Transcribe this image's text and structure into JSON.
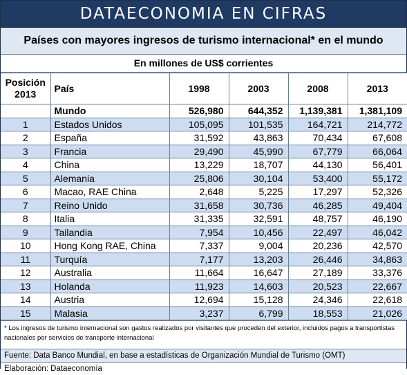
{
  "banner": {
    "title": "DATAECONOMIA EN CIFRAS"
  },
  "subtitle": "Países con mayores ingresos de turismo internacional* en el mundo",
  "unit": "En millones de US$ corrientes",
  "table": {
    "headers": {
      "position": "Posición 2013",
      "position_line1": "Posición",
      "position_line2": "2013",
      "country": "País",
      "years": [
        "1998",
        "2003",
        "2008",
        "2013"
      ]
    },
    "world": {
      "country": "Mundo",
      "values": [
        "526,980",
        "644,352",
        "1,139,381",
        "1,381,109"
      ]
    },
    "rows": [
      {
        "pos": "1",
        "country": "Estados Unidos",
        "values": [
          "105,095",
          "101,535",
          "164,721",
          "214,772"
        ]
      },
      {
        "pos": "2",
        "country": "España",
        "values": [
          "31,592",
          "43,863",
          "70,434",
          "67,608"
        ]
      },
      {
        "pos": "3",
        "country": "Francia",
        "values": [
          "29,490",
          "45,990",
          "67,779",
          "66,064"
        ]
      },
      {
        "pos": "4",
        "country": "China",
        "values": [
          "13,229",
          "18,707",
          "44,130",
          "56,401"
        ]
      },
      {
        "pos": "5",
        "country": "Alemania",
        "values": [
          "25,806",
          "30,104",
          "53,400",
          "55,172"
        ]
      },
      {
        "pos": "6",
        "country": "Macao, RAE China",
        "values": [
          "2,648",
          "5,225",
          "17,297",
          "52,326"
        ]
      },
      {
        "pos": "7",
        "country": "Reino Unido",
        "values": [
          "31,658",
          "30,736",
          "46,285",
          "49,404"
        ]
      },
      {
        "pos": "8",
        "country": "Italia",
        "values": [
          "31,335",
          "32,591",
          "48,757",
          "46,190"
        ]
      },
      {
        "pos": "9",
        "country": "Tailandia",
        "values": [
          "7,954",
          "10,456",
          "22,497",
          "46,042"
        ]
      },
      {
        "pos": "10",
        "country": "Hong Kong RAE, China",
        "values": [
          "7,337",
          "9,004",
          "20,236",
          "42,570"
        ]
      },
      {
        "pos": "11",
        "country": "Turquía",
        "values": [
          "7,177",
          "13,203",
          "26,446",
          "34,863"
        ]
      },
      {
        "pos": "12",
        "country": "Australia",
        "values": [
          "11,664",
          "16,647",
          "27,189",
          "33,376"
        ]
      },
      {
        "pos": "13",
        "country": "Holanda",
        "values": [
          "11,923",
          "14,603",
          "20,523",
          "22,667"
        ]
      },
      {
        "pos": "14",
        "country": "Austria",
        "values": [
          "12,694",
          "15,128",
          "24,346",
          "22,618"
        ]
      },
      {
        "pos": "15",
        "country": "Malasia",
        "values": [
          "3,237",
          "6,799",
          "18,553",
          "21,026"
        ]
      }
    ]
  },
  "footnote": "* Los ingresos de turismo internacional son gastos realizados por visitantes que proceden del exterior, incluidos pagos a transportistas nacionales por servicios de transporte internacional",
  "source": "Fuente: Data Banco Mundial, en base a estadísticas de Organización Mundial de Turismo (OMT)",
  "elaboration": "Elaboración: Dataeconomía",
  "colors": {
    "banner": "#1f3a63",
    "band": "#cddcf0",
    "light": "#dfe7f2"
  }
}
